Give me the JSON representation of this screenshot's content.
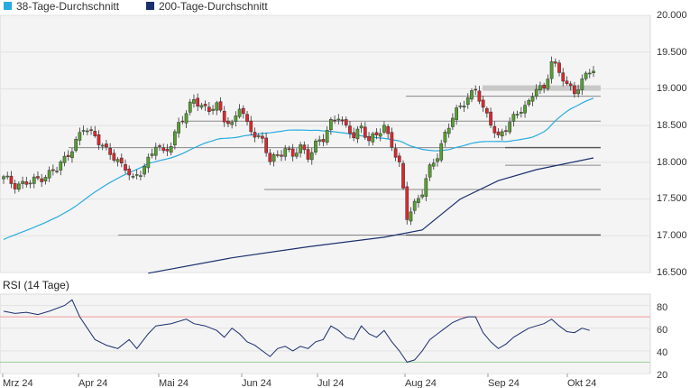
{
  "chart_data": {
    "type": "candlestick",
    "legend": [
      {
        "name": "38-Tage-Durchschnitt",
        "color": "#29abe2"
      },
      {
        "name": "200-Tage-Durchschnitt",
        "color": "#1a2f6e"
      }
    ],
    "x_ticks": [
      "Mrz 24",
      "Apr 24",
      "Mai 24",
      "Jun 24",
      "Jul 24",
      "Aug 24",
      "Sep 24",
      "Okt 24"
    ],
    "y_ticks": [
      "16.500",
      "17.000",
      "17.500",
      "18.000",
      "18.500",
      "19.000",
      "19.500",
      "20.000"
    ],
    "ylim": [
      16500,
      20000
    ],
    "colors": {
      "up": "#55a030",
      "down": "#e0262d",
      "sma38": "#29abe2",
      "sma200": "#1a2f6e",
      "support": "#555555",
      "highlight": "#c8c8c8",
      "rsi": "#1a2f6e",
      "rsi_upper": "#f29a9a",
      "rsi_lower": "#9bd19b"
    },
    "support_levels": [
      18900,
      18560,
      18200,
      17960,
      17630,
      17010
    ],
    "highlight_level": 19010,
    "rsi": {
      "title": "RSI (14 Tage)",
      "y_ticks": [
        "20",
        "40",
        "60",
        "80"
      ],
      "ylim": [
        20,
        90
      ],
      "upper": 70,
      "lower": 30
    }
  }
}
